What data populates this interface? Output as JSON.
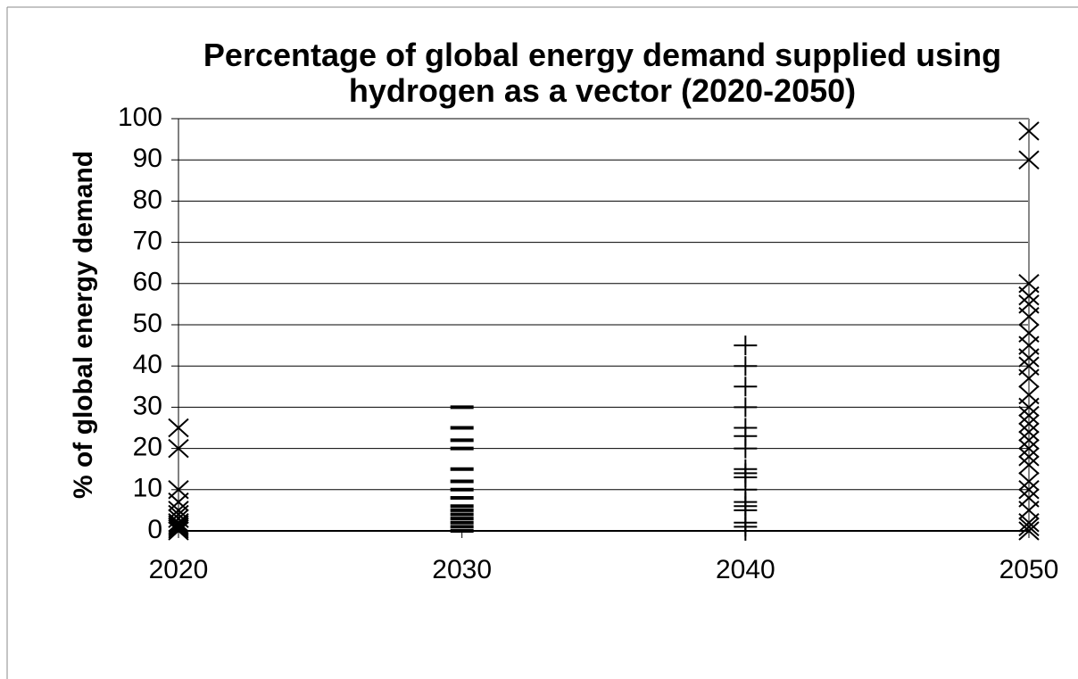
{
  "chart_data": {
    "type": "scatter",
    "title": "Percentage of global energy demand supplied using hydrogen as a vector (2020-2050)",
    "y_label": "% of global energy demand",
    "xlim": [
      2020,
      2050
    ],
    "xticks": [
      2020,
      2030,
      2040,
      2050
    ],
    "ylim": [
      0,
      100
    ],
    "yticks": [
      0,
      10,
      20,
      30,
      40,
      50,
      60,
      70,
      80,
      90,
      100
    ],
    "grid": true,
    "series": [
      {
        "color": "#000000",
        "marker": "x",
        "x": [
          2020,
          2020,
          2020,
          2020,
          2020,
          2020,
          2020,
          2020,
          2020,
          2020,
          2020,
          2020
        ],
        "values": [
          25,
          20,
          10,
          7,
          5,
          4,
          3,
          2,
          1.5,
          1,
          0.5,
          0
        ]
      },
      {
        "color": "#000000",
        "marker": "dash",
        "x": [
          2030,
          2030,
          2030,
          2030,
          2030,
          2030,
          2030,
          2030,
          2030,
          2030,
          2030,
          2030,
          2030,
          2030,
          2030
        ],
        "values": [
          30,
          25,
          22,
          20,
          15,
          12,
          10,
          8,
          6,
          5,
          4,
          3,
          2,
          1,
          0
        ]
      },
      {
        "color": "#000000",
        "marker": "plus",
        "x": [
          2040,
          2040,
          2040,
          2040,
          2040,
          2040,
          2040,
          2040,
          2040,
          2040,
          2040,
          2040,
          2040,
          2040,
          2040,
          2040,
          2040
        ],
        "values": [
          45,
          40,
          35,
          30,
          25,
          23,
          20,
          15,
          14,
          13,
          10,
          7,
          6,
          5,
          2,
          1,
          0
        ]
      },
      {
        "color": "#000000",
        "marker": "x",
        "x": [
          2050,
          2050,
          2050,
          2050,
          2050,
          2050,
          2050,
          2050,
          2050,
          2050,
          2050,
          2050,
          2050,
          2050,
          2050,
          2050,
          2050,
          2050,
          2050,
          2050,
          2050,
          2050,
          2050,
          2050,
          2050,
          2050,
          2050
        ],
        "values": [
          97,
          90,
          60,
          57,
          55,
          52,
          48,
          45,
          42,
          40,
          37,
          33,
          30,
          28,
          26,
          24,
          22,
          20,
          18,
          16,
          12,
          10,
          8,
          5,
          2,
          1,
          0
        ]
      }
    ]
  }
}
